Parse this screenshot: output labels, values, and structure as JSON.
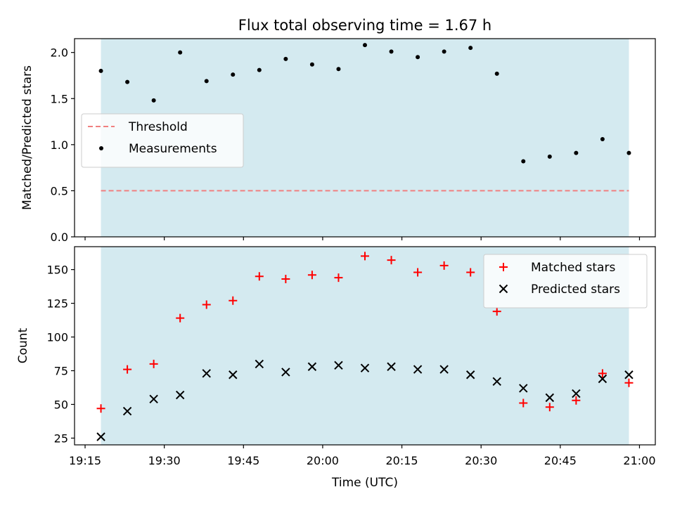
{
  "figure": {
    "title": "Flux total observing time = 1.67 h",
    "xlabel": "Time (UTC)",
    "x_ticks": [
      "19:15",
      "19:30",
      "19:45",
      "20:00",
      "20:15",
      "20:30",
      "20:45",
      "21:00"
    ]
  },
  "chart_data": [
    {
      "type": "scatter",
      "ylabel": "Matched/Predicted stars",
      "ylim": [
        0,
        2.15
      ],
      "yticks": [
        "0.0",
        "0.5",
        "1.0",
        "1.5",
        "2.0"
      ],
      "grid": false,
      "legend_position": "center-left",
      "shaded_span": {
        "from": "19:18",
        "to": "20:58",
        "color": "#d4eaf0"
      },
      "threshold": {
        "name": "Threshold",
        "value": 0.5,
        "color": "#f08080",
        "style": "dashed"
      },
      "series": [
        {
          "name": "Measurements",
          "color": "#000000",
          "marker": "dot",
          "x": [
            "19:18",
            "19:23",
            "19:28",
            "19:33",
            "19:38",
            "19:43",
            "19:48",
            "19:53",
            "19:58",
            "20:03",
            "20:08",
            "20:13",
            "20:18",
            "20:23",
            "20:28",
            "20:33",
            "20:38",
            "20:43",
            "20:48",
            "20:53",
            "20:58"
          ],
          "y": [
            1.8,
            1.68,
            1.48,
            2.0,
            1.69,
            1.76,
            1.81,
            1.93,
            1.87,
            1.82,
            2.08,
            2.01,
            1.95,
            2.01,
            2.05,
            1.77,
            0.82,
            0.87,
            0.91,
            1.06,
            0.91
          ]
        }
      ]
    },
    {
      "type": "scatter",
      "ylabel": "Count",
      "ylim": [
        20,
        167
      ],
      "yticks": [
        "25",
        "50",
        "75",
        "100",
        "125",
        "150"
      ],
      "grid": false,
      "legend_position": "top-right",
      "shaded_span": {
        "from": "19:18",
        "to": "20:58",
        "color": "#d4eaf0"
      },
      "series": [
        {
          "name": "Matched stars",
          "color": "#ff0000",
          "marker": "plus",
          "x": [
            "19:18",
            "19:23",
            "19:28",
            "19:33",
            "19:38",
            "19:43",
            "19:48",
            "19:53",
            "19:58",
            "20:03",
            "20:08",
            "20:13",
            "20:18",
            "20:23",
            "20:28",
            "20:33",
            "20:38",
            "20:43",
            "20:48",
            "20:53",
            "20:58"
          ],
          "y": [
            47,
            76,
            80,
            114,
            124,
            127,
            145,
            143,
            146,
            144,
            160,
            157,
            148,
            153,
            148,
            119,
            51,
            48,
            53,
            73,
            66
          ]
        },
        {
          "name": "Predicted stars",
          "color": "#000000",
          "marker": "x",
          "x": [
            "19:18",
            "19:23",
            "19:28",
            "19:33",
            "19:38",
            "19:43",
            "19:48",
            "19:53",
            "19:58",
            "20:03",
            "20:08",
            "20:13",
            "20:18",
            "20:23",
            "20:28",
            "20:33",
            "20:38",
            "20:43",
            "20:48",
            "20:53",
            "20:58"
          ],
          "y": [
            26,
            45,
            54,
            57,
            73,
            72,
            80,
            74,
            78,
            79,
            77,
            78,
            76,
            76,
            72,
            67,
            62,
            55,
            58,
            69,
            72
          ]
        }
      ]
    }
  ]
}
